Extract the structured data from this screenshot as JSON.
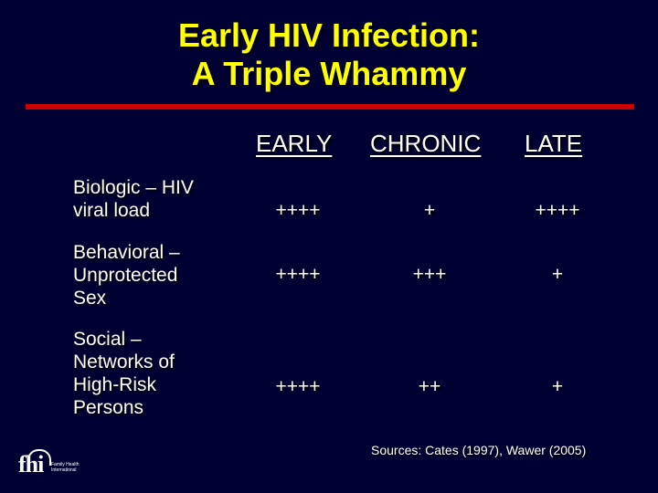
{
  "title": {
    "line1": "Early HIV Infection:",
    "line2": "A Triple Whammy"
  },
  "columns": [
    "EARLY",
    "CHRONIC",
    "LATE"
  ],
  "rows": [
    {
      "label_lines": [
        "Biologic – HIV",
        "viral load"
      ],
      "values": [
        "++++",
        "+",
        "++++"
      ]
    },
    {
      "label_lines": [
        "Behavioral –",
        "Unprotected",
        "Sex"
      ],
      "values": [
        "++++",
        "+++",
        "+"
      ]
    },
    {
      "label_lines": [
        "Social –",
        "Networks of",
        "High-Risk",
        "Persons"
      ],
      "values": [
        "++++",
        "++",
        "+"
      ]
    }
  ],
  "sources": "Sources:  Cates (1997), Wawer (2005)",
  "logo": {
    "mark": "fhi",
    "sub_line1": "Family Health",
    "sub_line2": "International"
  },
  "colors": {
    "background": "#000033",
    "title": "#ffff00",
    "rule": "#cc0000",
    "text": "#ffffff"
  }
}
